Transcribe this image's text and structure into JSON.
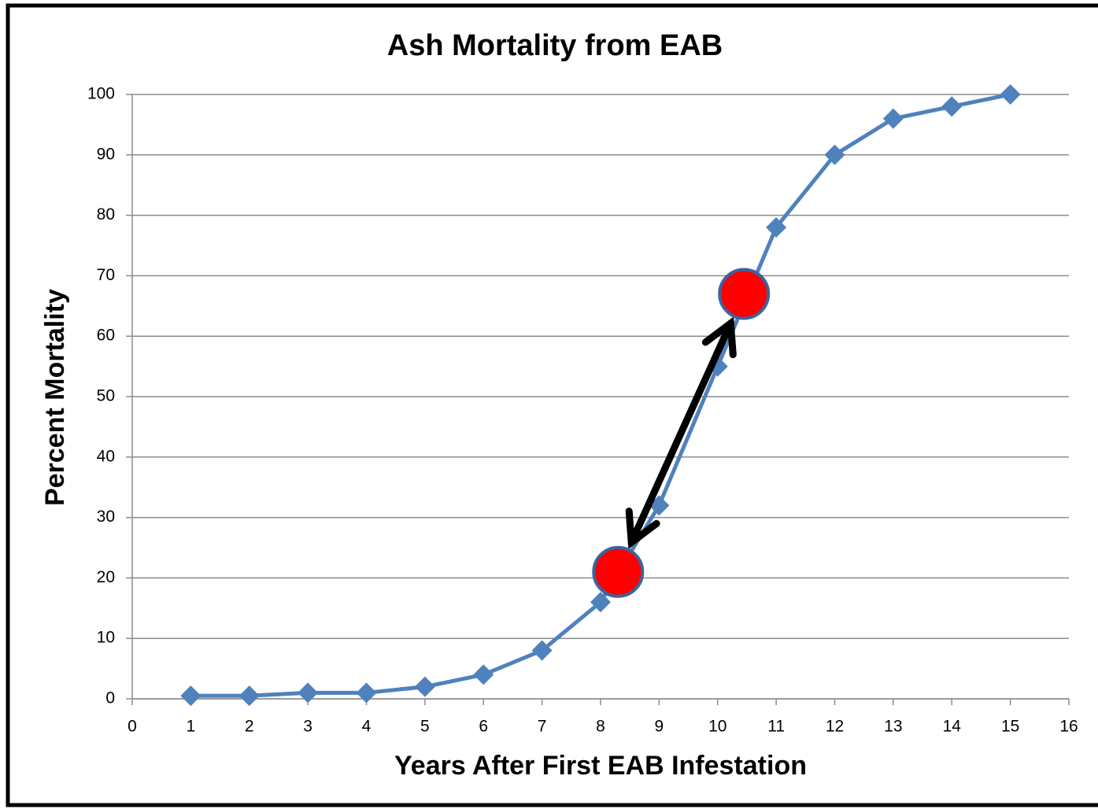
{
  "chart_data": {
    "type": "line",
    "title": "Ash Mortality from EAB",
    "x_label": "Years After First EAB Infestation",
    "y_label": "Percent Mortality",
    "series": [
      {
        "color": "#4f81bd",
        "x": [
          1,
          2,
          3,
          4,
          5,
          6,
          7,
          8,
          9,
          10,
          11,
          12,
          13,
          14,
          15
        ],
        "values": [
          0.5,
          0.5,
          1,
          1,
          2,
          4,
          8,
          16,
          32,
          55,
          78,
          90,
          96,
          98,
          100
        ]
      }
    ],
    "highlights": {
      "color": "#ff0000",
      "x": [
        8.3,
        10.45
      ],
      "values": [
        21,
        67
      ]
    },
    "xlim": [
      0,
      16
    ],
    "xticks": [
      0,
      1,
      2,
      3,
      4,
      5,
      6,
      7,
      8,
      9,
      10,
      11,
      12,
      13,
      14,
      15,
      16
    ],
    "ylim": [
      0,
      100
    ],
    "yticks": [
      0,
      10,
      20,
      30,
      40,
      50,
      60,
      70,
      80,
      90,
      100
    ],
    "grid": true
  }
}
